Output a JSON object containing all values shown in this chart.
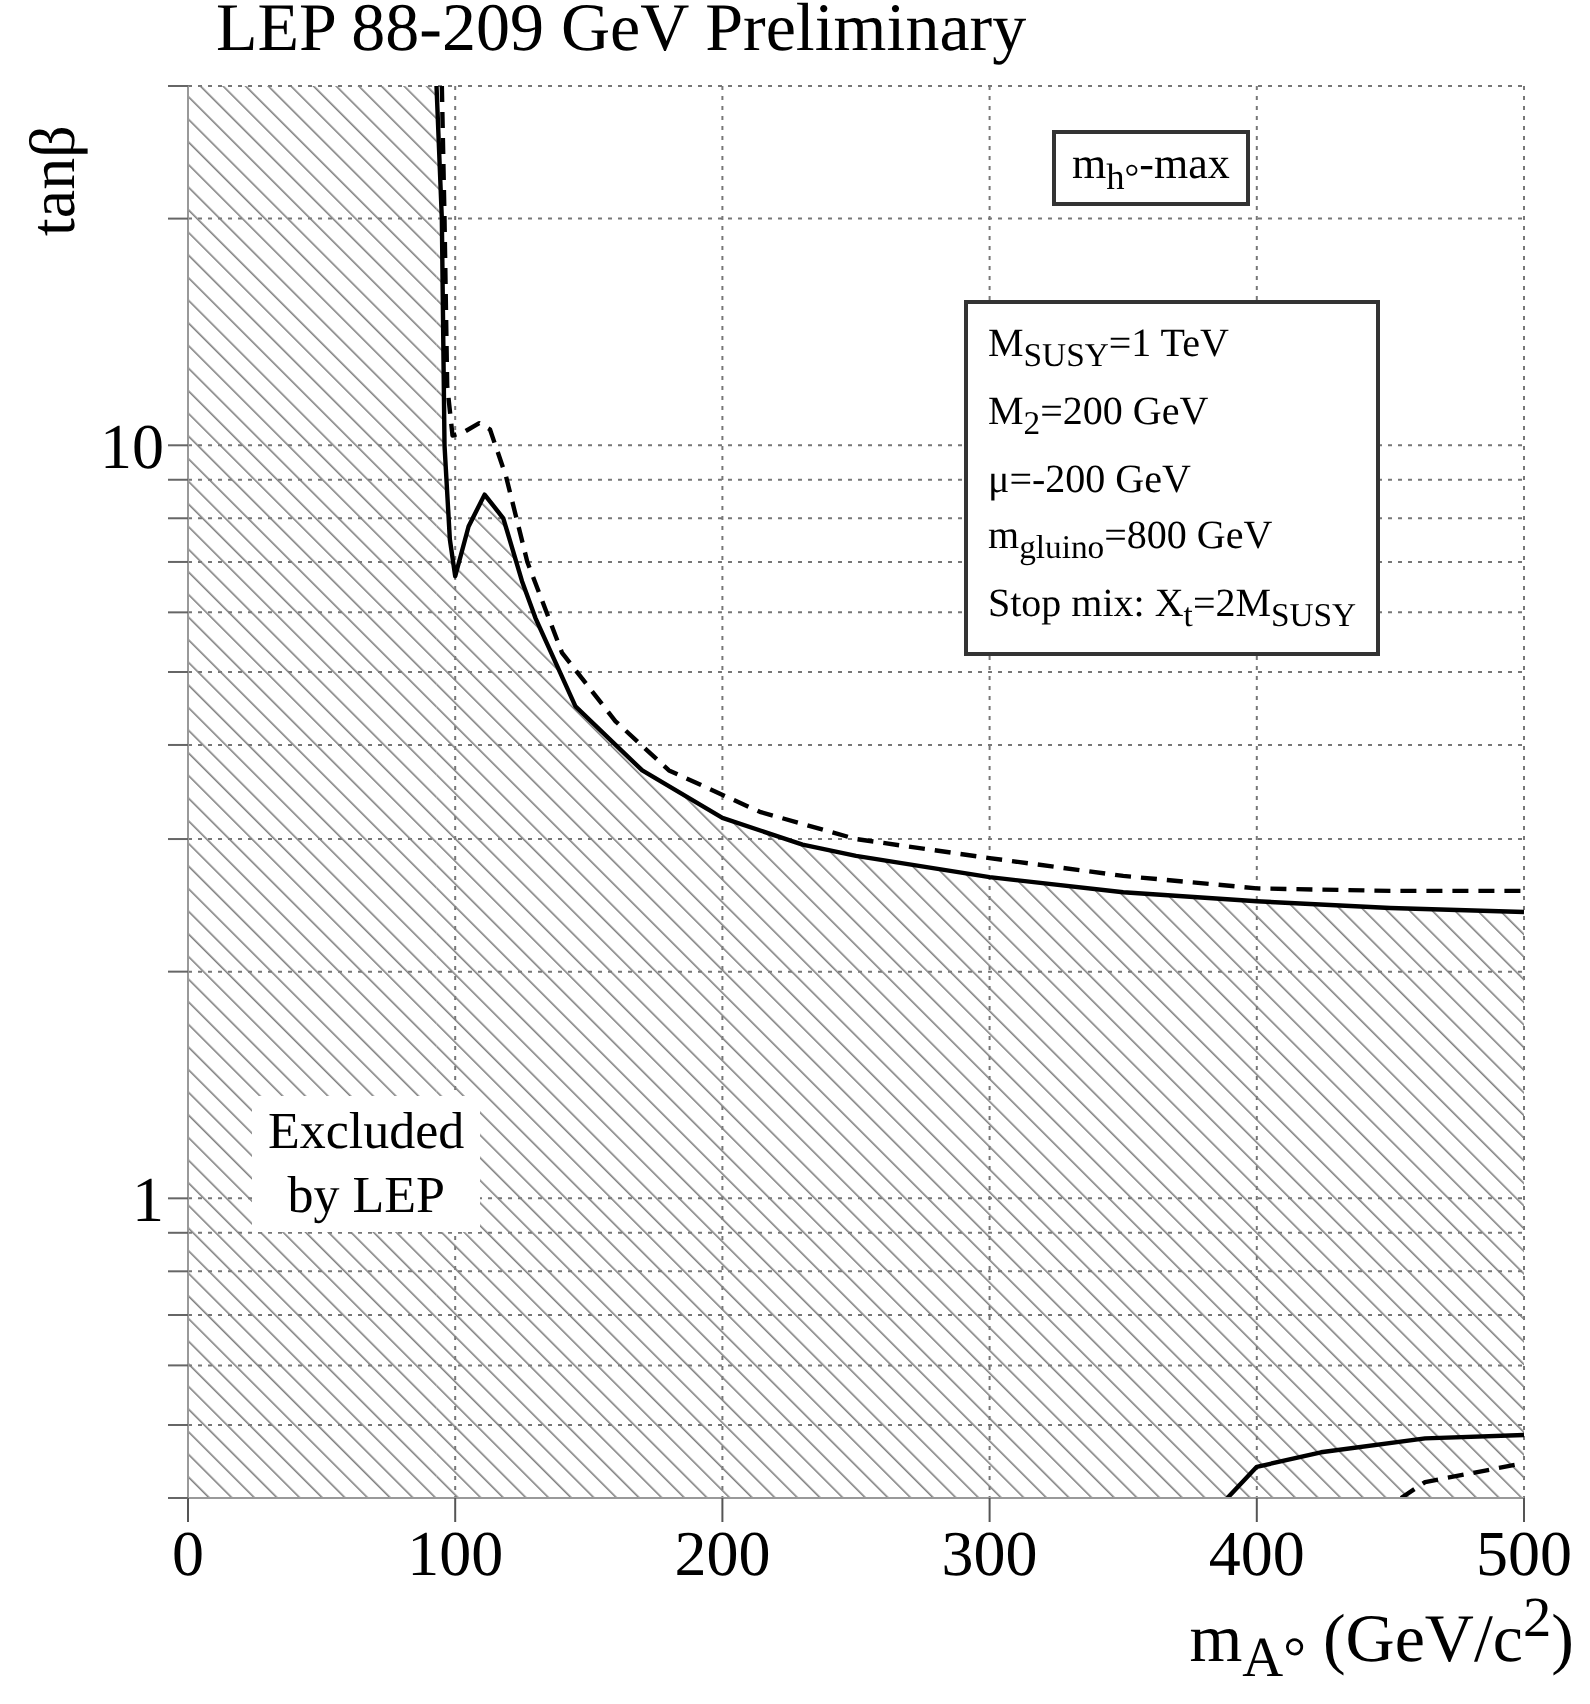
{
  "chart_data": {
    "type": "line",
    "title": "LEP 88-209 GeV Preliminary",
    "xlabel": "m$_{A°}$ (GeV/c$^{2}$)",
    "ylabel": "tanβ",
    "annotations": [
      "m$_{h°}$-max",
      "M$_{SUSY}$=1 TeV\nM$_{2}$=200 GeV\nμ=-200 GeV\nm$_{gluino}$=800 GeV\nStop mix: X$_{t}$=2M$_{SUSY}$",
      "Excluded\nby LEP"
    ],
    "series": [
      {
        "type": "area",
        "color": "#000000",
        "line_style": "solid",
        "x": [
          93,
          95,
          96,
          98,
          100,
          105,
          111,
          118,
          125,
          130,
          145,
          170,
          200,
          230,
          250,
          300,
          350,
          400,
          450,
          500
        ],
        "values": [
          30,
          20,
          10,
          7.5,
          6.7,
          7.8,
          8.6,
          8,
          6.6,
          5.9,
          4.5,
          3.7,
          3.2,
          2.95,
          2.85,
          2.67,
          2.55,
          2.48,
          2.43,
          2.4
        ]
      },
      {
        "color": "#000000",
        "line_style": "dashed",
        "x": [
          95,
          96,
          97,
          99,
          103,
          109,
          113,
          119,
          127,
          140,
          160,
          180,
          214,
          250,
          300,
          350,
          400,
          450,
          500
        ],
        "values": [
          30,
          20,
          12,
          10.3,
          10.4,
          10.7,
          10.5,
          9.1,
          7,
          5.3,
          4.3,
          3.7,
          3.26,
          3,
          2.83,
          2.68,
          2.58,
          2.56,
          2.56
        ]
      },
      {
        "color": "#000000",
        "line_style": "solid",
        "x": [
          389,
          400,
          424,
          463,
          500
        ],
        "values": [
          0.4,
          0.44,
          0.46,
          0.48,
          0.485
        ]
      },
      {
        "color": "#000000",
        "line_style": "dashed",
        "x": [
          454,
          463,
          500
        ],
        "values": [
          0.4,
          0.42,
          0.445
        ]
      }
    ],
    "bands": [
      {
        "axis": "x",
        "from": 0,
        "to": 93,
        "color": "#808080"
      }
    ],
    "xlim": [
      0,
      500
    ],
    "xticks": [
      0,
      100,
      200,
      300,
      400,
      500
    ],
    "log": "y",
    "ylim": [
      0.4,
      30
    ],
    "yticks": [
      {
        "value": 0.4,
        "label": null
      },
      {
        "value": 0.5,
        "label": null
      },
      {
        "value": 0.6,
        "label": null
      },
      {
        "value": 0.7,
        "label": null
      },
      {
        "value": 0.8,
        "label": null
      },
      {
        "value": 0.9,
        "label": null
      },
      1,
      {
        "value": 2,
        "label": null
      },
      {
        "value": 3,
        "label": null
      },
      {
        "value": 4,
        "label": null
      },
      {
        "value": 5,
        "label": null
      },
      {
        "value": 6,
        "label": null
      },
      {
        "value": 7,
        "label": null
      },
      {
        "value": 8,
        "label": null
      },
      {
        "value": 9,
        "label": null
      },
      10,
      {
        "value": 20,
        "label": null
      },
      {
        "value": 30,
        "label": null
      }
    ],
    "grid": true,
    "legend": false,
    "marker": "none"
  }
}
